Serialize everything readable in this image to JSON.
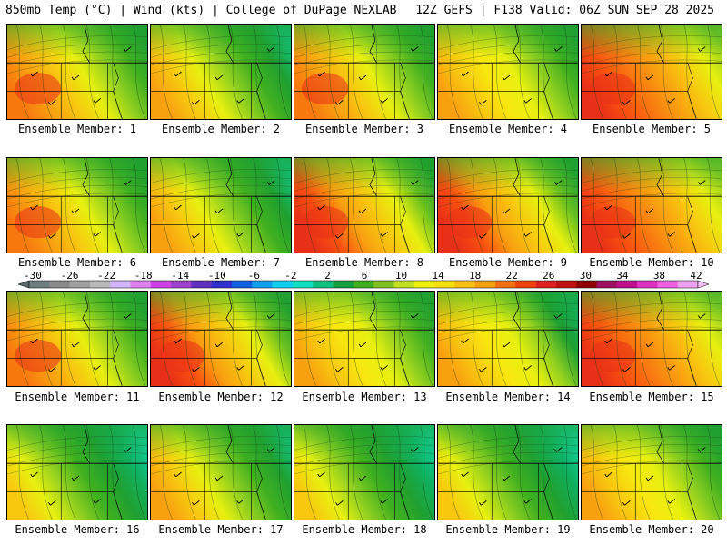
{
  "header": {
    "left": "850mb Temp (°C) | Wind (kts) | College of DuPage NEXLAB",
    "right": "12Z GEFS | F138 Valid: 06Z SUN SEP 28 2025"
  },
  "members": [
    {
      "label": "Ensemble Member: 1",
      "profile": "warm-west"
    },
    {
      "label": "Ensemble Member: 2",
      "profile": "cool-east"
    },
    {
      "label": "Ensemble Member: 3",
      "profile": "warm-west"
    },
    {
      "label": "Ensemble Member: 4",
      "profile": "warm-center"
    },
    {
      "label": "Ensemble Member: 5",
      "profile": "hot"
    },
    {
      "label": "Ensemble Member: 6",
      "profile": "warm-west"
    },
    {
      "label": "Ensemble Member: 7",
      "profile": "cool-east"
    },
    {
      "label": "Ensemble Member: 8",
      "profile": "hot-west"
    },
    {
      "label": "Ensemble Member: 9",
      "profile": "hot-west"
    },
    {
      "label": "Ensemble Member: 10",
      "profile": "hot"
    },
    {
      "label": "Ensemble Member: 11",
      "profile": "warm-west"
    },
    {
      "label": "Ensemble Member: 12",
      "profile": "hot-west"
    },
    {
      "label": "Ensemble Member: 13",
      "profile": "warm-center"
    },
    {
      "label": "Ensemble Member: 14",
      "profile": "cool-north"
    },
    {
      "label": "Ensemble Member: 15",
      "profile": "hot"
    },
    {
      "label": "Ensemble Member: 16",
      "profile": "cool"
    },
    {
      "label": "Ensemble Member: 17",
      "profile": "cool-east"
    },
    {
      "label": "Ensemble Member: 18",
      "profile": "cool"
    },
    {
      "label": "Ensemble Member: 19",
      "profile": "cool"
    },
    {
      "label": "Ensemble Member: 20",
      "profile": "warm-center"
    }
  ],
  "colorbar": {
    "tick_labels": [
      "-30",
      "-26",
      "-22",
      "-18",
      "-14",
      "-10",
      "-6",
      "-2",
      "2",
      "6",
      "10",
      "14",
      "18",
      "22",
      "26",
      "30",
      "34",
      "38",
      "42"
    ],
    "colors": [
      "#6f7f7f",
      "#8a8a8a",
      "#a0a0a0",
      "#b9b9b9",
      "#d2b4ff",
      "#e080f0",
      "#d040e8",
      "#a040d0",
      "#6030c0",
      "#3030d0",
      "#1060e0",
      "#10a0f0",
      "#10d0f0",
      "#10e0c0",
      "#10c080",
      "#10a040",
      "#40b020",
      "#80c020",
      "#c0e020",
      "#f0f010",
      "#f8e010",
      "#f8c010",
      "#f8a010",
      "#f07010",
      "#f04010",
      "#e02020",
      "#c01010",
      "#900000",
      "#a01060",
      "#c01090",
      "#e030c0",
      "#f060e0",
      "#f0a0f0"
    ]
  },
  "palette": {
    "hot": [
      "#e83018",
      "#f85010",
      "#f87810",
      "#f8a010",
      "#f8c810"
    ],
    "warm": [
      "#f8a010",
      "#f8c810",
      "#f8e810",
      "#e8f010",
      "#b8e020"
    ],
    "mild": [
      "#b8e020",
      "#90d020",
      "#68c020",
      "#40b020",
      "#20a030"
    ],
    "cool": [
      "#20a030",
      "#10b060",
      "#10c080",
      "#10d0a0",
      "#10e0c8"
    ]
  }
}
